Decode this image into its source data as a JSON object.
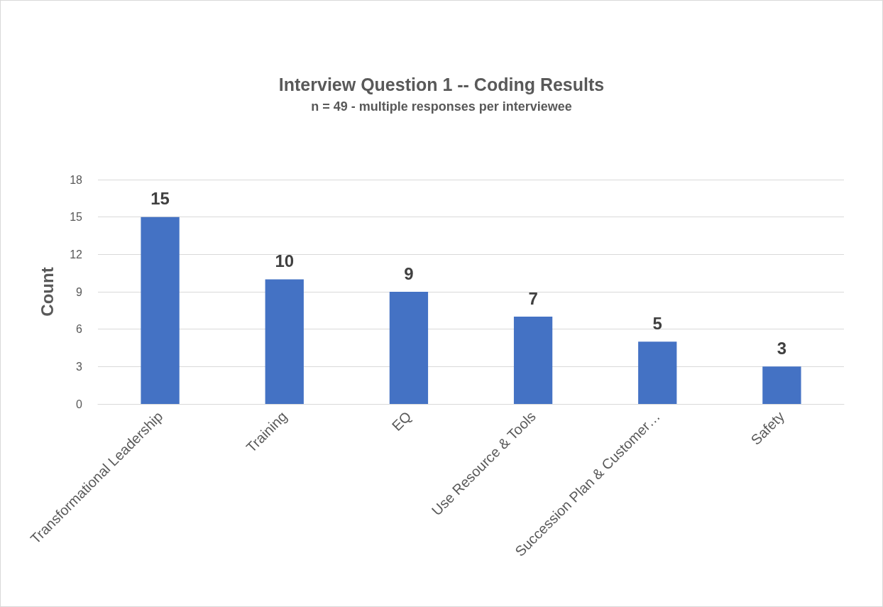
{
  "chart_data": {
    "type": "bar",
    "title": "Interview Question 1 -- Coding Results",
    "subtitle": "n = 49 - multiple responses per interviewee",
    "ylabel": "Count",
    "categories": [
      "Transformational Leadership",
      "Training",
      "EQ",
      "Use Resource & Tools",
      "Succession Plan & Customer…",
      "Safety"
    ],
    "values": [
      15,
      10,
      9,
      7,
      5,
      3
    ],
    "color": "#4472c4",
    "ylim": [
      0,
      18
    ],
    "yticks": [
      0,
      3,
      6,
      9,
      12,
      15,
      18
    ],
    "grid": "y",
    "data_labels": true
  }
}
